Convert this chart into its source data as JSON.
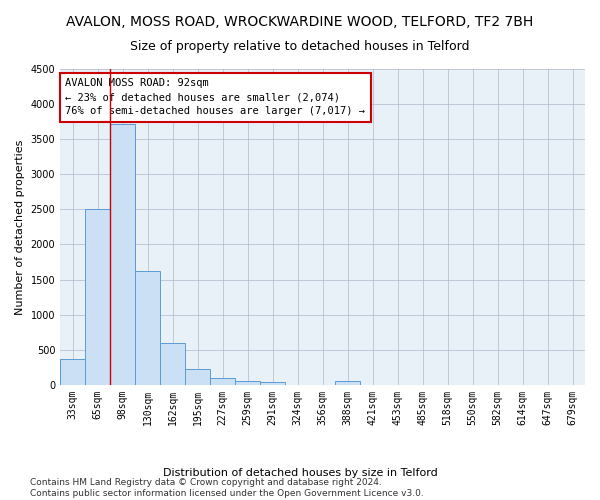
{
  "title": "AVALON, MOSS ROAD, WROCKWARDINE WOOD, TELFORD, TF2 7BH",
  "subtitle": "Size of property relative to detached houses in Telford",
  "xlabel": "Distribution of detached houses by size in Telford",
  "ylabel": "Number of detached properties",
  "categories": [
    "33sqm",
    "65sqm",
    "98sqm",
    "130sqm",
    "162sqm",
    "195sqm",
    "227sqm",
    "259sqm",
    "291sqm",
    "324sqm",
    "356sqm",
    "388sqm",
    "421sqm",
    "453sqm",
    "485sqm",
    "518sqm",
    "550sqm",
    "582sqm",
    "614sqm",
    "647sqm",
    "679sqm"
  ],
  "values": [
    370,
    2500,
    3720,
    1620,
    590,
    220,
    105,
    60,
    40,
    0,
    0,
    60,
    0,
    0,
    0,
    0,
    0,
    0,
    0,
    0,
    0
  ],
  "bar_color": "#cce0f5",
  "bar_edge_color": "#5b9bd5",
  "annotation_line1": "AVALON MOSS ROAD: 92sqm",
  "annotation_line2": "← 23% of detached houses are smaller (2,074)",
  "annotation_line3": "76% of semi-detached houses are larger (7,017) →",
  "annotation_box_color": "#ffffff",
  "annotation_box_edge": "#cc0000",
  "vline_color": "#cc0000",
  "vline_x": 1.5,
  "ylim": [
    0,
    4500
  ],
  "footer": "Contains HM Land Registry data © Crown copyright and database right 2024.\nContains public sector information licensed under the Open Government Licence v3.0.",
  "title_fontsize": 10,
  "subtitle_fontsize": 9,
  "axis_label_fontsize": 8,
  "tick_fontsize": 7,
  "annotation_fontsize": 7.5,
  "footer_fontsize": 6.5,
  "fig_width": 6.0,
  "fig_height": 5.0,
  "fig_dpi": 100
}
